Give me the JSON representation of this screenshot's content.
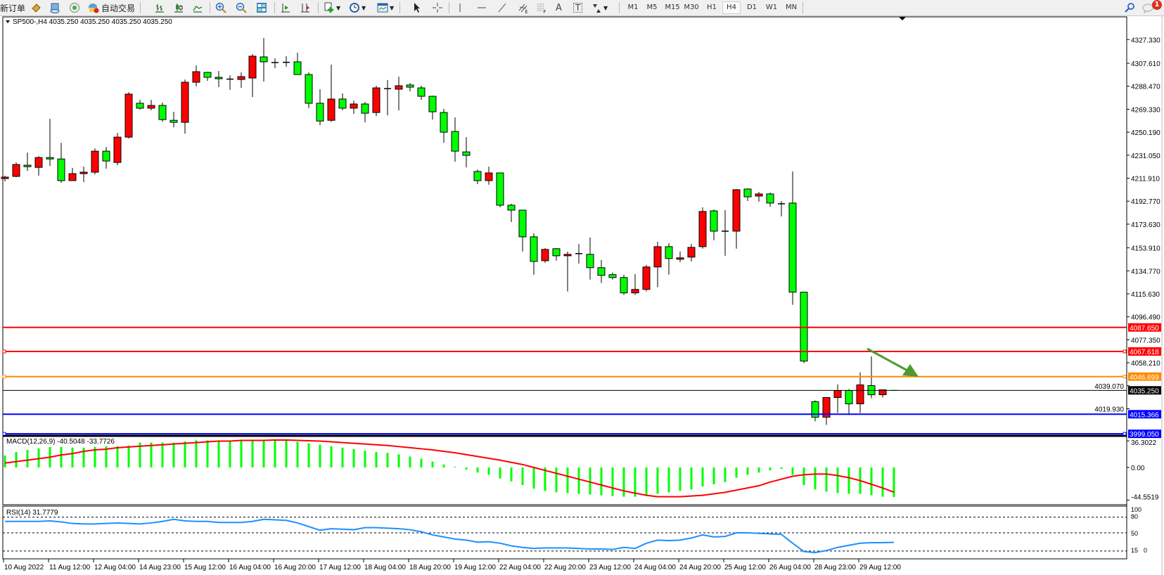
{
  "toolbar": {
    "new_order": "新订单",
    "auto_trading": "自动交易",
    "timeframes": [
      "M1",
      "M5",
      "M15",
      "M30",
      "H1",
      "H4",
      "D1",
      "W1",
      "MN"
    ],
    "active_timeframe": "H4",
    "icons": [
      "market-watch-icon",
      "data-window-icon",
      "navigator-icon",
      "bar-chart-icon",
      "candlestick-icon",
      "line-chart-icon",
      "zoom-in-icon",
      "zoom-out-icon",
      "tile-windows-icon",
      "auto-scroll-icon",
      "chart-shift-icon",
      "indicators-icon",
      "periods-icon",
      "templates-icon",
      "cursor-icon",
      "crosshair-icon",
      "vertical-line-icon",
      "horizontal-line-icon",
      "trendline-icon",
      "equidistant-channel-icon",
      "fibonacci-icon",
      "text-icon",
      "text-label-icon",
      "arrows-icon",
      "search-icon",
      "chat-icon"
    ],
    "line_label_A": "A",
    "line_label_T": "T",
    "notification_count": "1"
  },
  "chart": {
    "header": "SP500-,H4  4035.250 4035.250 4035.250 4035.250",
    "up_color": "#ff0000",
    "down_color": "#00ff00"
  },
  "chart_data": [
    {
      "type": "candlestick",
      "symbol": "SP500-",
      "timeframe": "H4",
      "ohlc_format": [
        "open",
        "high",
        "low",
        "close"
      ],
      "candles": [
        [
          4211.6,
          4214.0,
          4209.3,
          4212.8
        ],
        [
          4213.4,
          4225.0,
          4212.8,
          4223.3
        ],
        [
          4222.7,
          4233.2,
          4218.0,
          4221.5
        ],
        [
          4220.9,
          4230.3,
          4214.0,
          4229.1
        ],
        [
          4229.1,
          4261.3,
          4222.1,
          4227.9
        ],
        [
          4227.9,
          4241.4,
          4208.1,
          4209.9
        ],
        [
          4209.9,
          4220.4,
          4209.9,
          4215.7
        ],
        [
          4215.7,
          4221.5,
          4208.7,
          4216.9
        ],
        [
          4216.9,
          4236.7,
          4215.1,
          4234.4
        ],
        [
          4234.4,
          4237.9,
          4219.8,
          4226.2
        ],
        [
          4225.0,
          4249.6,
          4222.7,
          4246.1
        ],
        [
          4246.1,
          4283.6,
          4244.9,
          4281.9
        ],
        [
          4274.3,
          4277.2,
          4269.0,
          4270.2
        ],
        [
          4270.2,
          4277.2,
          4268.4,
          4272.5
        ],
        [
          4272.5,
          4274.8,
          4258.9,
          4260.7
        ],
        [
          4260.1,
          4267.2,
          4254.3,
          4258.4
        ],
        [
          4258.4,
          4294.1,
          4249.0,
          4291.8
        ],
        [
          4291.8,
          4305.8,
          4288.3,
          4300.6
        ],
        [
          4300.0,
          4300.6,
          4293.0,
          4295.9
        ],
        [
          4295.9,
          4301.2,
          4287.7,
          4294.7
        ],
        [
          4294.4,
          4297.6,
          4285.4,
          4294.1
        ],
        [
          4294.1,
          4300.0,
          4287.1,
          4296.5
        ],
        [
          4295.3,
          4315.2,
          4279.5,
          4313.5
        ],
        [
          4312.9,
          4328.7,
          4292.4,
          4308.8
        ],
        [
          4308.2,
          4311.7,
          4303.5,
          4308.2
        ],
        [
          4308.2,
          4313.5,
          4304.7,
          4308.4
        ],
        [
          4308.8,
          4316.4,
          4298.2,
          4298.2
        ],
        [
          4298.2,
          4300.0,
          4270.2,
          4274.3
        ],
        [
          4274.3,
          4286.0,
          4256.0,
          4259.5
        ],
        [
          4260.1,
          4306.4,
          4258.9,
          4277.8
        ],
        [
          4277.8,
          4282.5,
          4268.4,
          4270.2
        ],
        [
          4270.2,
          4276.6,
          4265.4,
          4273.7
        ],
        [
          4273.7,
          4275.4,
          4258.4,
          4266.0
        ],
        [
          4266.6,
          4288.9,
          4263.6,
          4287.1
        ],
        [
          4286.5,
          4293.6,
          4264.2,
          4286.5
        ],
        [
          4286.0,
          4296.5,
          4268.4,
          4288.9
        ],
        [
          4289.5,
          4291.2,
          4284.2,
          4287.7
        ],
        [
          4287.1,
          4288.9,
          4277.2,
          4280.1
        ],
        [
          4280.1,
          4280.7,
          4260.7,
          4267.2
        ],
        [
          4266.6,
          4269.6,
          4241.4,
          4250.2
        ],
        [
          4250.8,
          4262.5,
          4225.6,
          4234.4
        ],
        [
          4233.8,
          4246.1,
          4220.9,
          4230.9
        ],
        [
          4217.5,
          4219.2,
          4206.9,
          4209.9
        ],
        [
          4209.9,
          4221.5,
          4206.4,
          4216.3
        ],
        [
          4216.3,
          4216.3,
          4187.7,
          4189.4
        ],
        [
          4189.4,
          4190.6,
          4175.4,
          4185.3
        ],
        [
          4185.3,
          4185.3,
          4150.8,
          4163.1
        ],
        [
          4163.1,
          4166.0,
          4131.6,
          4142.6
        ],
        [
          4143.2,
          4153.7,
          4141.5,
          4152.6
        ],
        [
          4153.2,
          4153.7,
          4143.2,
          4147.3
        ],
        [
          4147.3,
          4150.8,
          4117.6,
          4148.5
        ],
        [
          4149.1,
          4157.2,
          4140.9,
          4149.1
        ],
        [
          4148.5,
          4162.5,
          4127.5,
          4137.4
        ],
        [
          4137.4,
          4143.8,
          4124.6,
          4131.0
        ],
        [
          4131.6,
          4133.3,
          4127.5,
          4129.2
        ],
        [
          4129.2,
          4131.6,
          4114.7,
          4116.4
        ],
        [
          4116.4,
          4132.1,
          4114.7,
          4119.3
        ],
        [
          4119.3,
          4139.7,
          4117.6,
          4138.0
        ],
        [
          4138.0,
          4159.0,
          4121.1,
          4154.9
        ],
        [
          4154.9,
          4157.8,
          4131.6,
          4145.0
        ],
        [
          4144.4,
          4150.8,
          4142.1,
          4145.6
        ],
        [
          4146.2,
          4157.2,
          4142.6,
          4154.3
        ],
        [
          4154.9,
          4187.7,
          4153.2,
          4184.2
        ],
        [
          4184.7,
          4185.9,
          4160.2,
          4167.8
        ],
        [
          4167.8,
          4185.3,
          4147.3,
          4167.8
        ],
        [
          4167.8,
          4202.9,
          4153.2,
          4202.3
        ],
        [
          4202.9,
          4203.4,
          4192.9,
          4196.4
        ],
        [
          4197.0,
          4200.5,
          4192.3,
          4198.8
        ],
        [
          4198.8,
          4199.9,
          4188.2,
          4191.2
        ],
        [
          4190.6,
          4192.9,
          4180.1,
          4190.6
        ],
        [
          4191.2,
          4217.5,
          4106.5,
          4117.0
        ],
        [
          4117.0,
          4117.0,
          4057.9,
          4059.6
        ],
        [
          4025.8,
          4026.9,
          4009.4,
          4012.9
        ],
        [
          4012.9,
          4029.3,
          4006.5,
          4029.3
        ],
        [
          4029.3,
          4040.3,
          4016.4,
          4035.1
        ],
        [
          4035.1,
          4036.3,
          4014.7,
          4024.0
        ],
        [
          4024.0,
          4050.3,
          4016.4,
          4039.8
        ],
        [
          4039.2,
          4063.5,
          4028.7,
          4031.6
        ],
        [
          4031.6,
          4035.7,
          4029.3,
          4035.7
        ],
        [
          4035.25,
          4035.25,
          4035.25,
          4035.25
        ]
      ],
      "price_ticks": [
        "4327.330",
        "4307.610",
        "4288.470",
        "4269.330",
        "4250.190",
        "4231.050",
        "4211.910",
        "4192.770",
        "4173.630",
        "4153.910",
        "4134.770",
        "4115.630",
        "4096.490",
        "4077.350",
        "4058.210",
        "4039.070",
        "4019.930"
      ],
      "time_labels": [
        "10 Aug 2022",
        "11 Aug 12:00",
        "12 Aug 04:00",
        "14 Aug 23:00",
        "15 Aug 12:00",
        "16 Aug 04:00",
        "16 Aug 20:00",
        "17 Aug 12:00",
        "18 Aug 04:00",
        "18 Aug 20:00",
        "19 Aug 12:00",
        "22 Aug 04:00",
        "22 Aug 20:00",
        "23 Aug 12:00",
        "24 Aug 04:00",
        "24 Aug 20:00",
        "25 Aug 12:00",
        "26 Aug 04:00",
        "28 Aug 23:00",
        "29 Aug 12:00"
      ],
      "horizontal_lines": [
        {
          "price": 4087.65,
          "label": "4087.650",
          "color": "#ff0000",
          "markers": false
        },
        {
          "price": 4067.618,
          "label": "4067.618",
          "color": "#ff0000",
          "markers": true
        },
        {
          "price": 4046.699,
          "label": "4046.699",
          "color": "#ff8c00",
          "markers": true
        },
        {
          "price": 4035.25,
          "label": "4035.250",
          "color": "#000000",
          "markers": false,
          "bid": true
        },
        {
          "price": 4015.366,
          "label": "4015.366",
          "color": "#0000ff",
          "markers": false
        },
        {
          "price": 3999.05,
          "label": "3999.050",
          "color": "#0000ff",
          "markers": true
        }
      ],
      "arrow_color": "#4e9a2e"
    },
    {
      "type": "bar",
      "indicator": "MACD",
      "label": "MACD(12,26,9) -40.5048 -33.7726",
      "axis_labels": [
        "36.3022",
        "0.00",
        "-44.5519"
      ],
      "ylim": [
        -44.5519,
        36.3022
      ],
      "histogram_color": "#00ff00",
      "signal_color": "#ff0000",
      "histogram": [
        16.3,
        21,
        24,
        26,
        28,
        28,
        27,
        27,
        28,
        29,
        29,
        30,
        34,
        34,
        34,
        34,
        35.5,
        37,
        37,
        37,
        36.5,
        36.5,
        37,
        37,
        36.5,
        36.5,
        35,
        33,
        31,
        29,
        27,
        25,
        23,
        21,
        20,
        18,
        15,
        12,
        8,
        4,
        1,
        -3,
        -7,
        -10,
        -15,
        -19,
        -24,
        -29,
        -32,
        -34,
        -35,
        -36,
        -37,
        -38,
        -39,
        -40,
        -40,
        -38,
        -36,
        -34,
        -32,
        -30,
        -26,
        -23,
        -20,
        -14,
        -10,
        -7,
        -4,
        -2,
        -10,
        -24,
        -30,
        -33,
        -35,
        -36,
        -36,
        -38,
        -40,
        -40.5048
      ],
      "signal": [
        6,
        8,
        10,
        12,
        14,
        17,
        19,
        22,
        24,
        25,
        27,
        28,
        29,
        30,
        31,
        32,
        33,
        34,
        35,
        36,
        36,
        37,
        37,
        37,
        37.5,
        37.5,
        37,
        36.5,
        36,
        35,
        34,
        33,
        32,
        31,
        30,
        28.5,
        27,
        25.5,
        24,
        22,
        20,
        17.5,
        15,
        12.5,
        10,
        7,
        4,
        0,
        -4,
        -8,
        -12,
        -16,
        -20,
        -24,
        -28,
        -32,
        -35,
        -38,
        -40,
        -40,
        -40,
        -39,
        -38,
        -36,
        -34,
        -31,
        -28,
        -25,
        -20,
        -16,
        -12,
        -10,
        -9,
        -9,
        -11,
        -14,
        -18,
        -23,
        -28,
        -33.7726
      ]
    },
    {
      "type": "line",
      "indicator": "RSI",
      "label": "RSI(14) 31.7779",
      "axis_labels": [
        "100",
        "80",
        "50",
        "15",
        "0"
      ],
      "levels": [
        80,
        50,
        15
      ],
      "ylim": [
        0,
        100
      ],
      "color": "#1e90ff",
      "values": [
        72,
        72,
        72,
        72,
        73,
        71,
        68,
        67,
        67,
        68,
        69,
        68,
        67,
        69,
        72,
        76,
        73,
        72,
        72,
        70,
        70,
        70,
        72,
        76,
        75,
        74,
        69,
        62,
        55,
        58,
        57,
        56,
        60,
        60,
        59,
        58,
        56,
        52,
        46,
        42,
        38,
        36,
        32,
        33,
        30,
        25,
        22,
        20,
        21,
        21,
        21,
        20,
        19,
        19,
        18,
        22,
        20,
        30,
        36,
        35,
        36,
        40,
        46,
        42,
        43,
        50,
        50,
        49,
        48,
        47,
        30,
        14,
        12,
        16,
        22,
        26,
        30,
        31,
        31,
        31.7779
      ]
    }
  ]
}
